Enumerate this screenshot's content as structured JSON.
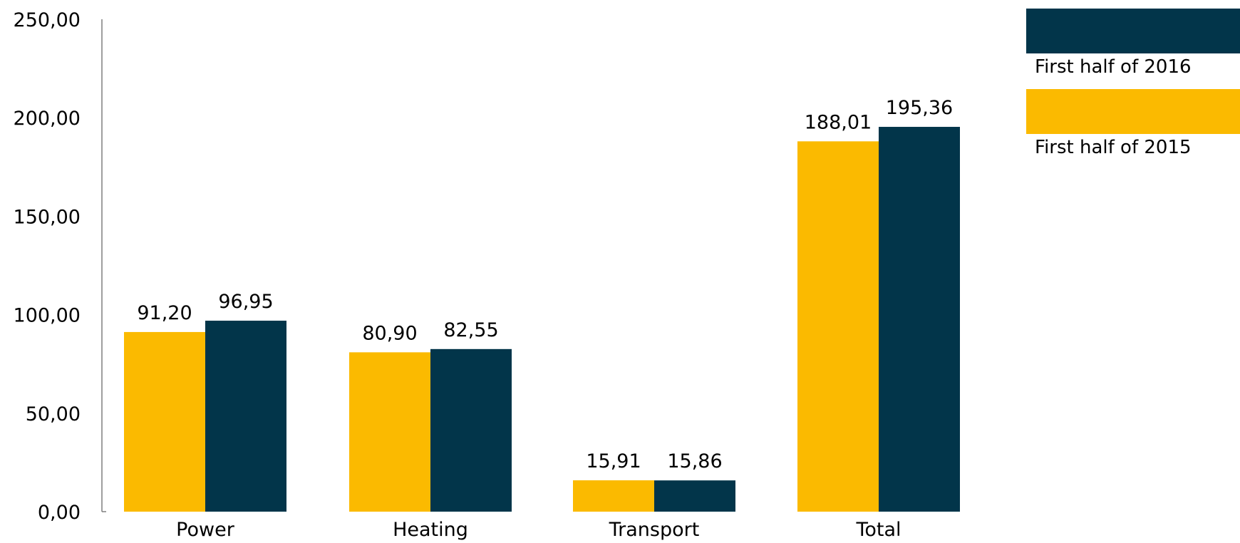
{
  "chart_data": {
    "type": "bar",
    "title": "",
    "xlabel": "",
    "ylabel": "",
    "categories": [
      "Power",
      "Heating",
      "Transport",
      "Total"
    ],
    "series": [
      {
        "name": "First half of 2015",
        "color": "#FBBA00",
        "values": [
          91.2,
          80.9,
          15.91,
          188.01
        ],
        "labels": [
          "91,20",
          "80,90",
          "15,91",
          "188,01"
        ]
      },
      {
        "name": "First half of 2016",
        "color": "#02354A",
        "values": [
          96.95,
          82.55,
          15.86,
          195.36
        ],
        "labels": [
          "96,95",
          "82,55",
          "15,86",
          "195,36"
        ]
      }
    ],
    "ylim": [
      0,
      250
    ],
    "yticks": [
      0,
      50,
      100,
      150,
      200,
      250
    ],
    "ytick_labels": [
      "0,00",
      "50,00",
      "100,00",
      "150,00",
      "200,00",
      "250,00"
    ],
    "grid": false,
    "legend_position": "top-right",
    "legend": [
      {
        "name": "First half of 2016",
        "color": "#02354A"
      },
      {
        "name": "First half of 2015",
        "color": "#FBBA00"
      }
    ]
  }
}
